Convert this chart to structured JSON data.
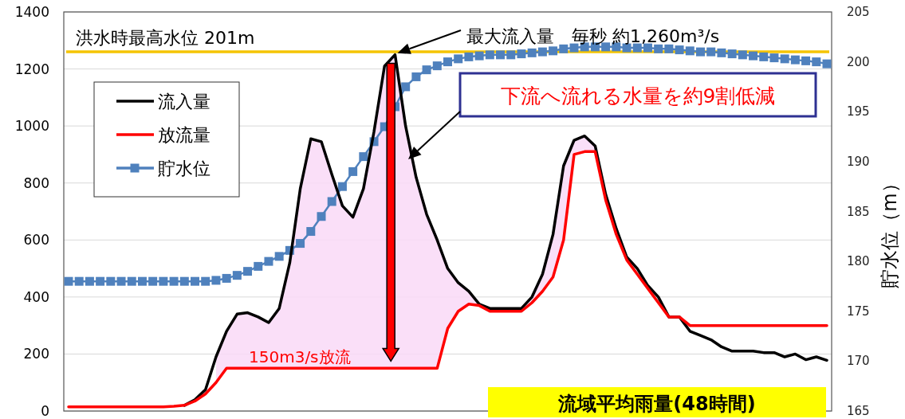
{
  "chart_data": {
    "type": "line",
    "categories": [
      null,
      null,
      null,
      null,
      null,
      null,
      null,
      null,
      null,
      null,
      null,
      null,
      null,
      null,
      null,
      null,
      null,
      null,
      null,
      null,
      null,
      null,
      null,
      null,
      null,
      null,
      null,
      null,
      null,
      null,
      null,
      null,
      null,
      null,
      null,
      null,
      null,
      null,
      null,
      null,
      null,
      null,
      null,
      null,
      null,
      null,
      null,
      null,
      null,
      null,
      null,
      null,
      null,
      null,
      null,
      null,
      null,
      null,
      null,
      null,
      null,
      null,
      null,
      null,
      null,
      null,
      null,
      null,
      null,
      null,
      null,
      null,
      null
    ],
    "series": [
      {
        "name": "流入量",
        "color": "#000000",
        "marker": "none",
        "values": [
          null,
          null,
          null,
          null,
          null,
          null,
          null,
          null,
          null,
          null,
          null,
          20,
          40,
          75,
          190,
          280,
          340,
          345,
          330,
          310,
          360,
          520,
          780,
          955,
          945,
          830,
          720,
          680,
          780,
          980,
          1210,
          1250,
          1000,
          820,
          690,
          600,
          500,
          450,
          420,
          375,
          360,
          360,
          360,
          360,
          400,
          480,
          620,
          860,
          950,
          965,
          930,
          760,
          640,
          540,
          500,
          440,
          400,
          330,
          330,
          280,
          265,
          250,
          225,
          210,
          210,
          210,
          205,
          205,
          190,
          200,
          180,
          190,
          178
        ],
        "lower": [
          null,
          null,
          null,
          null,
          null,
          null,
          null,
          null,
          null,
          null,
          null,
          null,
          null,
          null,
          100,
          150,
          150,
          150,
          150,
          150,
          150,
          150,
          150,
          150,
          150,
          150,
          150,
          150,
          150,
          150,
          150,
          150,
          150,
          150,
          150,
          150,
          290,
          350,
          375,
          370,
          350,
          350,
          350,
          350,
          380,
          420,
          470,
          600,
          900,
          910,
          910,
          null,
          null,
          null,
          null,
          null,
          null,
          null,
          null,
          null,
          null,
          null,
          null,
          null,
          null,
          null,
          null,
          null,
          null,
          null,
          null,
          null,
          null
        ],
        "upper": [
          null,
          null,
          null,
          null,
          null,
          null,
          null,
          null,
          null,
          null,
          null,
          null,
          null,
          null,
          190,
          280,
          340,
          345,
          330,
          310,
          360,
          520,
          780,
          955,
          945,
          830,
          720,
          680,
          780,
          980,
          1210,
          1250,
          1000,
          820,
          690,
          600,
          500,
          450,
          420,
          375,
          360,
          360,
          360,
          360,
          400,
          480,
          620,
          860,
          950,
          965,
          930,
          null,
          null,
          null,
          null,
          null,
          null,
          null,
          null,
          null,
          null,
          null,
          null,
          null,
          null,
          null,
          null,
          null,
          null,
          null,
          null,
          null,
          null
        ]
      },
      {
        "name": "放流量",
        "color": "#ff0000",
        "marker": "none",
        "values": [
          15,
          15,
          15,
          15,
          15,
          15,
          15,
          15,
          15,
          15,
          17,
          20,
          35,
          60,
          100,
          150,
          150,
          150,
          150,
          150,
          150,
          150,
          150,
          150,
          150,
          150,
          150,
          150,
          150,
          150,
          150,
          150,
          150,
          150,
          150,
          150,
          290,
          350,
          375,
          370,
          350,
          350,
          350,
          350,
          380,
          420,
          470,
          600,
          900,
          910,
          910,
          740,
          620,
          530,
          480,
          430,
          380,
          330,
          330,
          300,
          300,
          300,
          300,
          300,
          300,
          300,
          300,
          300,
          300,
          300,
          300,
          300,
          300
        ]
      },
      {
        "name": "貯水位",
        "color": "#4f81bd",
        "marker": "square",
        "axis": "y2",
        "values": [
          178,
          178,
          178,
          178,
          178,
          178,
          178,
          178,
          178,
          178,
          178,
          178,
          178,
          178,
          178.1,
          178.3,
          178.6,
          179,
          179.5,
          180,
          180.5,
          181.1,
          181.8,
          183,
          184.5,
          186,
          187.5,
          189,
          190.5,
          192,
          193.5,
          195.5,
          197.5,
          198.5,
          199.2,
          199.6,
          200,
          200.3,
          200.5,
          200.6,
          200.7,
          200.7,
          200.7,
          200.8,
          200.9,
          201,
          201.1,
          201.3,
          201.4,
          201.5,
          201.5,
          201.5,
          201.5,
          201.4,
          201.4,
          201.4,
          201.3,
          201.3,
          201.2,
          201.1,
          201,
          201,
          200.9,
          200.8,
          200.7,
          200.6,
          200.5,
          200.4,
          200.3,
          200.2,
          200.1,
          200,
          199.8
        ]
      }
    ],
    "ylim": [
      0,
      1400
    ],
    "yticks": [
      0,
      200,
      400,
      600,
      800,
      1000,
      1200,
      1400
    ],
    "y2lim": [
      165,
      205
    ],
    "y2ticks": [
      165,
      170,
      175,
      180,
      185,
      190,
      195,
      200,
      205
    ],
    "y2label": "貯水位（m）",
    "ref_lines": [
      {
        "axis": "y2",
        "value": 201,
        "label": "洪水時最高水位  201m",
        "color": "#f5c400"
      }
    ],
    "annotations": [
      "最大流入量　毎秒 約1,260m³/s",
      "下流へ流れる水量を約9割低減",
      "150m3/s放流",
      "流域平均雨量(48時間)"
    ],
    "grid": "y",
    "legend": "top left"
  }
}
